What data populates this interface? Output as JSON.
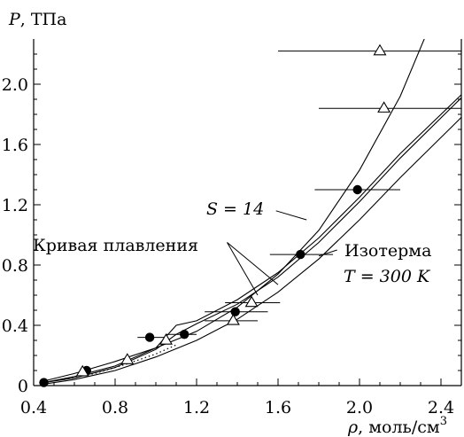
{
  "chart_data": {
    "type": "scatter",
    "ylabel_symbol": "P",
    "ylabel_unit": ", ТПа",
    "xlabel_symbol": "ρ",
    "xlabel_unit": ", моль/см",
    "xlabel_sup": "3",
    "xlim": [
      0.4,
      2.5
    ],
    "ylim": [
      0,
      2.3
    ],
    "x_ticks": [
      0.4,
      0.8,
      1.2,
      1.6,
      2.0,
      2.4
    ],
    "y_ticks": [
      0,
      0.4,
      0.8,
      1.2,
      1.6,
      2.0
    ],
    "x_tick_labels": [
      "0.4",
      "0.8",
      "1.2",
      "1.6",
      "2.0",
      "2.4"
    ],
    "y_tick_labels": [
      "0",
      "0.4",
      "0.8",
      "1.2",
      "1.6",
      "2.0"
    ],
    "grid": false,
    "annotations": {
      "s_label": "S = 14",
      "melting_label": "Кривая плавления",
      "isotherm_label_1": "Изотерма",
      "isotherm_label_2": "T = 300 K"
    },
    "series": [
      {
        "marker": "circle-filled",
        "points": [
          {
            "x": 0.45,
            "y": 0.02,
            "xerr": [
              0.45,
              0.45
            ]
          },
          {
            "x": 0.66,
            "y": 0.1,
            "xerr": [
              0.66,
              0.66
            ]
          },
          {
            "x": 0.97,
            "y": 0.32,
            "xerr": [
              0.91,
              1.06
            ]
          },
          {
            "x": 1.14,
            "y": 0.34,
            "xerr": [
              1.05,
              1.2
            ]
          },
          {
            "x": 1.39,
            "y": 0.49,
            "xerr": [
              1.24,
              1.55
            ]
          },
          {
            "x": 1.71,
            "y": 0.87,
            "xerr": [
              1.56,
              1.87
            ]
          },
          {
            "x": 1.99,
            "y": 1.3,
            "xerr": [
              1.78,
              2.2
            ]
          }
        ]
      },
      {
        "marker": "triangle-open",
        "points": [
          {
            "x": 0.64,
            "y": 0.09,
            "xerr": [
              0.64,
              0.64
            ]
          },
          {
            "x": 0.86,
            "y": 0.17,
            "xerr": [
              0.86,
              0.86
            ]
          },
          {
            "x": 1.05,
            "y": 0.3,
            "xerr": [
              1.05,
              1.05
            ]
          },
          {
            "x": 1.38,
            "y": 0.43,
            "xerr": [
              1.24,
              1.5
            ]
          },
          {
            "x": 1.47,
            "y": 0.55,
            "xerr": [
              1.34,
              1.61
            ]
          },
          {
            "x": 2.12,
            "y": 1.84,
            "xerr": [
              1.8,
              2.5
            ]
          },
          {
            "x": 2.1,
            "y": 2.22,
            "xerr": [
              1.6,
              2.5
            ]
          }
        ]
      }
    ],
    "curves": [
      {
        "name": "S = 14",
        "points": [
          [
            0.45,
            0.03
          ],
          [
            0.6,
            0.08
          ],
          [
            0.8,
            0.16
          ],
          [
            1.0,
            0.25
          ],
          [
            1.2,
            0.36
          ],
          [
            1.4,
            0.52
          ],
          [
            1.6,
            0.74
          ],
          [
            1.8,
            1.03
          ],
          [
            2.0,
            1.43
          ],
          [
            2.2,
            1.92
          ],
          [
            2.38,
            2.5
          ]
        ]
      },
      {
        "name": "Кривая плавления (верхняя)",
        "points": [
          [
            0.45,
            0.02
          ],
          [
            0.6,
            0.06
          ],
          [
            0.8,
            0.13
          ],
          [
            1.0,
            0.25
          ],
          [
            1.1,
            0.4
          ],
          [
            1.2,
            0.43
          ],
          [
            1.4,
            0.57
          ],
          [
            1.6,
            0.75
          ],
          [
            1.8,
            0.98
          ],
          [
            2.0,
            1.25
          ],
          [
            2.2,
            1.54
          ],
          [
            2.5,
            1.93
          ]
        ]
      },
      {
        "name": "Кривая плавления (нижняя)",
        "points": [
          [
            0.45,
            0.02
          ],
          [
            0.6,
            0.05
          ],
          [
            0.8,
            0.12
          ],
          [
            1.0,
            0.24
          ],
          [
            1.1,
            0.34
          ],
          [
            1.2,
            0.41
          ],
          [
            1.4,
            0.54
          ],
          [
            1.6,
            0.72
          ],
          [
            1.8,
            0.95
          ],
          [
            2.0,
            1.22
          ],
          [
            2.2,
            1.51
          ],
          [
            2.5,
            1.91
          ]
        ]
      },
      {
        "name": "Изотерма T = 300 K",
        "points": [
          [
            0.45,
            0.01
          ],
          [
            0.6,
            0.04
          ],
          [
            0.8,
            0.1
          ],
          [
            1.0,
            0.19
          ],
          [
            1.2,
            0.3
          ],
          [
            1.4,
            0.44
          ],
          [
            1.6,
            0.62
          ],
          [
            1.8,
            0.84
          ],
          [
            2.0,
            1.1
          ],
          [
            2.2,
            1.38
          ],
          [
            2.5,
            1.78
          ]
        ]
      },
      {
        "name": "dotted",
        "dotted": true,
        "points": [
          [
            0.55,
            0.04
          ],
          [
            0.7,
            0.08
          ],
          [
            0.85,
            0.14
          ],
          [
            1.0,
            0.21
          ],
          [
            1.1,
            0.27
          ]
        ]
      }
    ],
    "leaders": [
      {
        "label": "S = 14",
        "from": [
          1.59,
          1.16
        ],
        "to": [
          1.74,
          1.1
        ]
      },
      {
        "label": "Кривая плавления",
        "from": [
          1.35,
          0.95
        ],
        "to": [
          1.6,
          0.67
        ]
      },
      {
        "label": "Кривая плавления",
        "from": [
          1.35,
          0.95
        ],
        "to": [
          1.5,
          0.6
        ]
      },
      {
        "label": "Изотерма",
        "from": [
          1.89,
          0.9
        ],
        "to": [
          1.8,
          0.86
        ]
      }
    ]
  }
}
